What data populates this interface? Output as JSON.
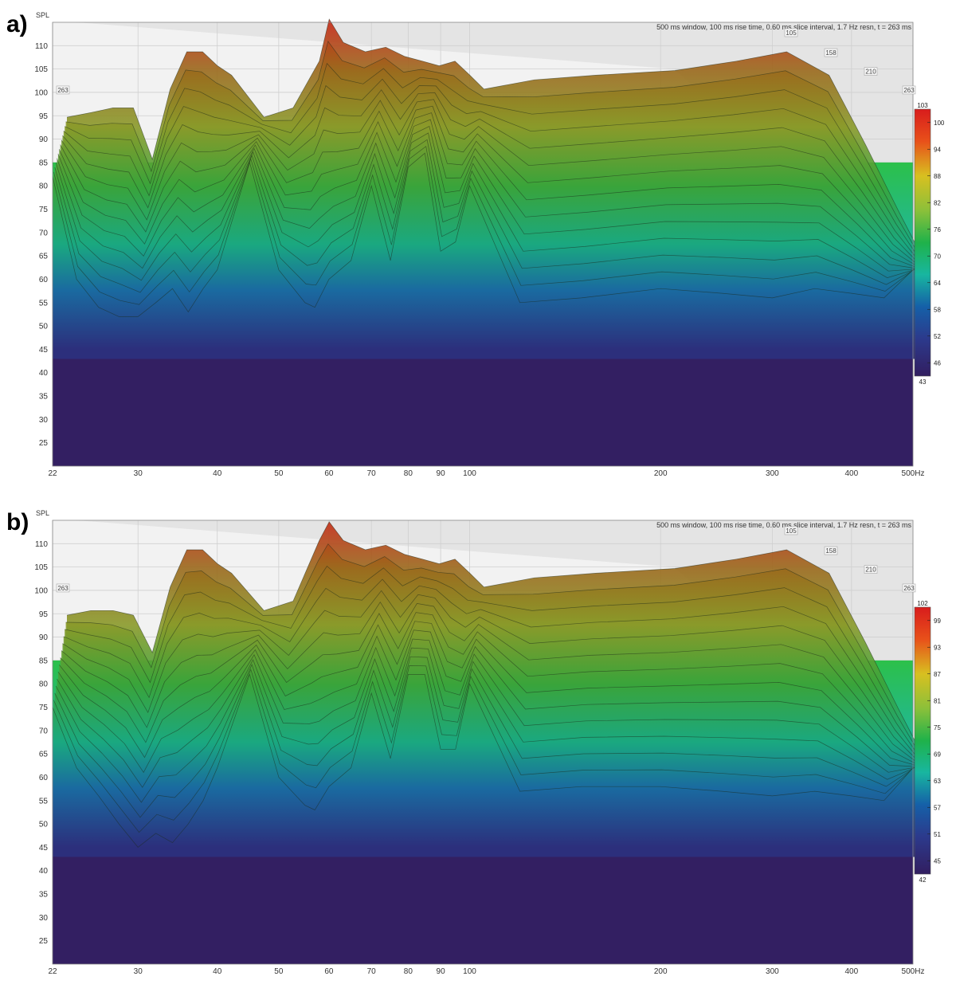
{
  "chart_data": [
    {
      "panel_label": "a)",
      "type": "waterfall",
      "ylabel": "SPL",
      "x_unit": "Hz",
      "x_scale": "log",
      "xlim": [
        22,
        500
      ],
      "ylim": [
        20,
        115
      ],
      "x_ticks": [
        "22",
        "30",
        "40",
        "50",
        "60",
        "70",
        "80",
        "90",
        "100",
        "200",
        "300",
        "400",
        "500Hz"
      ],
      "x_tick_values": [
        22,
        30,
        40,
        50,
        60,
        70,
        80,
        90,
        100,
        200,
        300,
        400,
        500
      ],
      "y_ticks": [
        "25",
        "30",
        "35",
        "40",
        "45",
        "50",
        "55",
        "60",
        "65",
        "70",
        "75",
        "80",
        "85",
        "90",
        "95",
        "100",
        "105",
        "110"
      ],
      "y_tick_values": [
        25,
        30,
        35,
        40,
        45,
        50,
        55,
        60,
        65,
        70,
        75,
        80,
        85,
        90,
        95,
        100,
        105,
        110
      ],
      "annotation": "500 ms window, 100 ms rise time, 0.60 ms slice interval, 1.7 Hz resn, t = 263 ms",
      "time_axis_labels": [
        "263",
        "105",
        "158",
        "210",
        "263"
      ],
      "colorbar": {
        "max_label": "103",
        "min_label": "43",
        "tick_labels": [
          "100",
          "94",
          "88",
          "82",
          "76",
          "70",
          "64",
          "58",
          "52",
          "46"
        ],
        "tick_values": [
          100,
          94,
          88,
          82,
          76,
          70,
          64,
          58,
          52,
          46
        ],
        "range": [
          43,
          103
        ]
      },
      "spectrum": {
        "freq": [
          22,
          24,
          26,
          28,
          30,
          32,
          34,
          36,
          38,
          40,
          45,
          50,
          55,
          57,
          60,
          65,
          70,
          75,
          80,
          85,
          90,
          95,
          100,
          120,
          150,
          200,
          250,
          300,
          350,
          400,
          450,
          500
        ],
        "back_slice_spl": [
          94,
          95,
          96,
          96,
          85,
          100,
          108,
          108,
          105,
          103,
          94,
          96,
          106,
          115,
          110,
          108,
          109,
          107,
          106,
          105,
          106,
          103,
          100,
          102,
          103,
          104,
          106,
          108,
          103,
          88,
          74,
          62
        ],
        "front_slice_spl": [
          82,
          60,
          54,
          52,
          52,
          55,
          58,
          53,
          58,
          62,
          85,
          62,
          55,
          54,
          60,
          64,
          80,
          64,
          84,
          87,
          66,
          68,
          80,
          55,
          56,
          58,
          57,
          56,
          58,
          57,
          56,
          62
        ]
      }
    },
    {
      "panel_label": "b)",
      "type": "waterfall",
      "ylabel": "SPL",
      "x_unit": "Hz",
      "x_scale": "log",
      "xlim": [
        22,
        500
      ],
      "ylim": [
        20,
        115
      ],
      "x_ticks": [
        "22",
        "30",
        "40",
        "50",
        "60",
        "70",
        "80",
        "90",
        "100",
        "200",
        "300",
        "400",
        "500Hz"
      ],
      "x_tick_values": [
        22,
        30,
        40,
        50,
        60,
        70,
        80,
        90,
        100,
        200,
        300,
        400,
        500
      ],
      "y_ticks": [
        "25",
        "30",
        "35",
        "40",
        "45",
        "50",
        "55",
        "60",
        "65",
        "70",
        "75",
        "80",
        "85",
        "90",
        "95",
        "100",
        "105",
        "110"
      ],
      "y_tick_values": [
        25,
        30,
        35,
        40,
        45,
        50,
        55,
        60,
        65,
        70,
        75,
        80,
        85,
        90,
        95,
        100,
        105,
        110
      ],
      "annotation": "500 ms window, 100 ms rise time, 0.60 ms slice interval, 1.7 Hz resn, t = 263 ms",
      "time_axis_labels": [
        "263",
        "105",
        "158",
        "210",
        "263"
      ],
      "colorbar": {
        "max_label": "102",
        "min_label": "42",
        "tick_labels": [
          "99",
          "93",
          "87",
          "81",
          "75",
          "69",
          "63",
          "57",
          "51",
          "45"
        ],
        "tick_values": [
          99,
          93,
          87,
          81,
          75,
          69,
          63,
          57,
          51,
          45
        ],
        "range": [
          42,
          102
        ]
      },
      "spectrum": {
        "freq": [
          22,
          24,
          26,
          28,
          30,
          32,
          34,
          36,
          38,
          40,
          45,
          50,
          55,
          57,
          60,
          65,
          70,
          75,
          80,
          85,
          90,
          95,
          100,
          120,
          150,
          200,
          250,
          300,
          350,
          400,
          450,
          500
        ],
        "back_slice_spl": [
          94,
          95,
          95,
          94,
          86,
          100,
          108,
          108,
          105,
          103,
          95,
          97,
          110,
          114,
          110,
          108,
          109,
          107,
          106,
          105,
          106,
          103,
          100,
          102,
          103,
          104,
          106,
          108,
          103,
          88,
          74,
          62
        ],
        "front_slice_spl": [
          75,
          62,
          56,
          50,
          45,
          48,
          46,
          50,
          55,
          62,
          82,
          60,
          54,
          53,
          58,
          62,
          78,
          64,
          82,
          82,
          66,
          66,
          80,
          57,
          58,
          58,
          57,
          56,
          57,
          56,
          55,
          62
        ]
      }
    }
  ]
}
